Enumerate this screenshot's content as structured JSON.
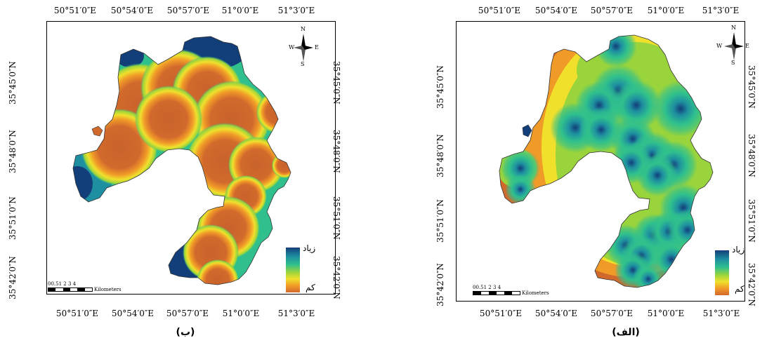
{
  "panels": {
    "b": {
      "caption": "(ب)",
      "top_ticks": [
        "50°51′0″E",
        "50°54′0″E",
        "50°57′0″E",
        "51°0′0″E",
        "51°3′0″E"
      ],
      "bottom_ticks": [
        "50°51′0″E",
        "50°54′0″E",
        "50°57′0″E",
        "51°0′0″E",
        "51°3′0″E"
      ],
      "left_ticks": [
        "35°45′0″N",
        "35°48′0″N",
        "35°51′0″N",
        "35°42′0″N"
      ],
      "right_ticks": [
        "35°45′0″N",
        "35°48′0″N",
        "35°51′0″N",
        "35°42′0″N"
      ],
      "legend_high": "زیاد",
      "legend_low": "کم",
      "scale_numbers": "00.51   2   3   4",
      "scale_unit": "Kilometers",
      "north": {
        "n": "N",
        "s": "S",
        "e": "E",
        "w": "W"
      }
    },
    "a": {
      "caption": "(الف)",
      "top_ticks": [
        "50°51′0″E",
        "50°54′0″E",
        "50°57′0″E",
        "51°0′0″E",
        "51°3′0″E"
      ],
      "bottom_ticks": [
        "50°51′0″E",
        "50°54′0″E",
        "50°57′0″E",
        "51°0′0″E",
        "51°3′0″E"
      ],
      "left_ticks": [
        "35°45′0″N",
        "35°48′0″N",
        "35°51′0″N",
        "35°42′0″N"
      ],
      "right_ticks": [
        "35°45′0″N",
        "35°48′0″N",
        "35°51′0″N",
        "35°42′0″N"
      ],
      "legend_high": "زیاد",
      "legend_low": "کم",
      "scale_numbers": "00.51   2   3   4",
      "scale_unit": "Kilometers",
      "north": {
        "n": "N",
        "s": "S",
        "e": "E",
        "w": "W"
      }
    }
  },
  "colors": {
    "high": "#123e7a",
    "mid_high": "#1e8fa0",
    "mid": "#2fc08d",
    "mid_low": "#9ad43c",
    "yellow": "#f0e02c",
    "orange": "#f09a28",
    "low": "#d2692c"
  }
}
